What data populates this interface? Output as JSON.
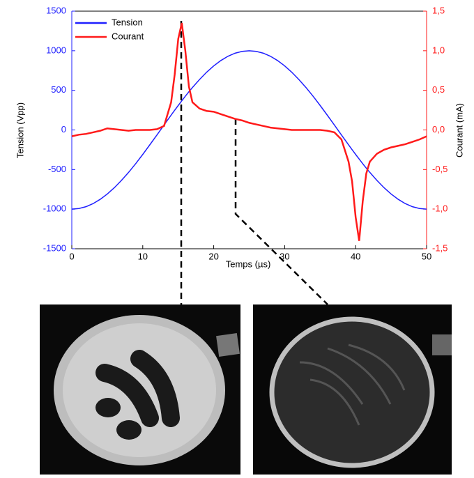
{
  "chart_data": {
    "type": "line",
    "xlabel": "Temps (µs)",
    "ylabel": "Tension (Vpp)",
    "y2label": "Courant (mA)",
    "x": [
      0,
      1,
      2,
      3,
      4,
      5,
      6,
      7,
      8,
      9,
      10,
      11,
      12,
      13,
      14,
      14.5,
      15,
      15.5,
      16,
      16.5,
      17,
      18,
      19,
      20,
      21,
      22,
      23,
      24,
      25,
      26,
      27,
      28,
      29,
      30,
      31,
      32,
      33,
      34,
      35,
      36,
      37,
      38,
      39,
      39.5,
      40,
      40.5,
      41,
      41.5,
      42,
      43,
      44,
      45,
      46,
      47,
      48,
      49,
      50
    ],
    "series": [
      {
        "name": "Tension",
        "color": "#1f1fff",
        "values": [
          -1000,
          -992,
          -969,
          -930,
          -876,
          -809,
          -729,
          -637,
          -536,
          -426,
          -309,
          -187,
          -63,
          63,
          187,
          249,
          309,
          368,
          426,
          482,
          536,
          637,
          729,
          809,
          876,
          930,
          969,
          992,
          1000,
          992,
          969,
          930,
          876,
          809,
          729,
          637,
          536,
          426,
          309,
          187,
          63,
          -63,
          -187,
          -249,
          -309,
          -368,
          -426,
          -482,
          -536,
          -637,
          -729,
          -809,
          -876,
          -930,
          -969,
          -992,
          -1000
        ]
      },
      {
        "name": "Courant",
        "color": "#ff1a1a",
        "axis": "y2",
        "values": [
          -0.08,
          -0.06,
          -0.05,
          -0.03,
          -0.01,
          0.02,
          0.01,
          0.0,
          -0.01,
          0.0,
          0.0,
          0.0,
          0.01,
          0.05,
          0.35,
          0.7,
          1.15,
          1.35,
          1.0,
          0.55,
          0.35,
          0.27,
          0.24,
          0.23,
          0.2,
          0.17,
          0.14,
          0.12,
          0.09,
          0.07,
          0.05,
          0.03,
          0.02,
          0.01,
          0.0,
          0.0,
          0.0,
          0.0,
          0.0,
          -0.01,
          -0.03,
          -0.12,
          -0.4,
          -0.65,
          -1.1,
          -1.4,
          -0.9,
          -0.55,
          -0.4,
          -0.3,
          -0.25,
          -0.22,
          -0.2,
          -0.18,
          -0.15,
          -0.12,
          -0.08
        ]
      }
    ],
    "xlim": [
      0,
      50
    ],
    "xticks": [
      0,
      10,
      20,
      30,
      40,
      50
    ],
    "ylim": [
      -1500,
      1500
    ],
    "yticks": [
      -1500,
      -1000,
      -500,
      0,
      500,
      1000,
      1500
    ],
    "y2lim": [
      -1.5,
      1.5
    ],
    "y2ticks": [
      {
        "value": -1.5,
        "label": "-1,5"
      },
      {
        "value": -1.0,
        "label": "-1,0"
      },
      {
        "value": -0.5,
        "label": "-0,5"
      },
      {
        "value": 0,
        "label": "0,0"
      },
      {
        "value": 0.5,
        "label": "0,5"
      },
      {
        "value": 1.0,
        "label": "1,0"
      },
      {
        "value": 1.5,
        "label": "1,5"
      }
    ],
    "legend": "upper-left"
  }
}
